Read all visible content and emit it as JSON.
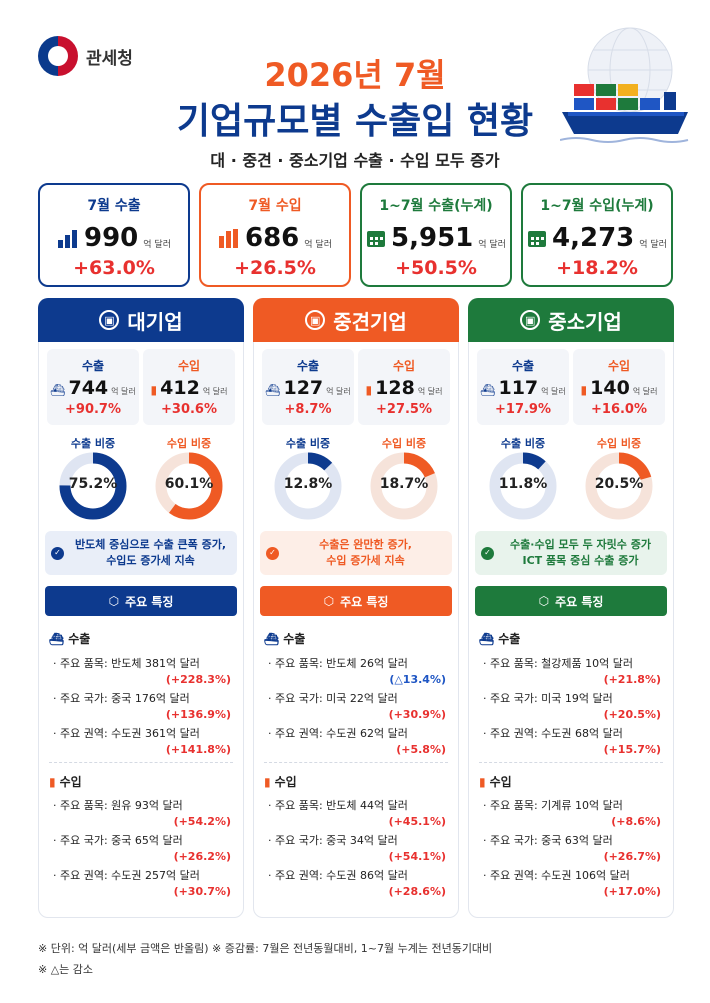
{
  "header": {
    "logo_text": "관세청",
    "title_line1": "2026년 7월",
    "title_line2": "기업규모별 수출입 현황",
    "subtitle": "대 · 중견 · 중소기업 수출 · 수입 모두 증가"
  },
  "summary": [
    {
      "label": "7월 수출",
      "value": "990",
      "unit": "억 달러",
      "change": "+63.0%",
      "icon": "bar-chart-icon",
      "color": "#0d3a8e"
    },
    {
      "label": "7월 수입",
      "value": "686",
      "unit": "억 달러",
      "change": "+26.5%",
      "icon": "bar-chart-icon",
      "color": "#ef5a24"
    },
    {
      "label": "1~7월 수출(누계)",
      "value": "5,951",
      "unit": "억 달러",
      "change": "+50.5%",
      "icon": "calendar-icon",
      "color": "#1e7a3c"
    },
    {
      "label": "1~7월 수입(누계)",
      "value": "4,273",
      "unit": "억 달러",
      "change": "+18.2%",
      "icon": "calendar-icon",
      "color": "#1e7a3c"
    }
  ],
  "columns": [
    {
      "name": "대기업",
      "color": "#0d3a8e",
      "export": {
        "label": "수출",
        "value": "744",
        "unit": "억 달러",
        "change": "+90.7%"
      },
      "import": {
        "label": "수입",
        "value": "412",
        "unit": "억 달러",
        "change": "+30.6%"
      },
      "export_share": {
        "label": "수출 비중",
        "value": 75.2,
        "text": "75.2%"
      },
      "import_share": {
        "label": "수입 비중",
        "value": 60.1,
        "text": "60.1%"
      },
      "note": [
        "반도체 중심으로 수출 큰폭 증가,",
        "수입도 증가세 지속"
      ],
      "features_label": "주요 특징",
      "export_section": "수출",
      "export_items": [
        {
          "text": "· 주요 품목: 반도체 381억 달러",
          "change": "(+228.3%)",
          "dir": "up"
        },
        {
          "text": "· 주요 국가: 중국 176억 달러",
          "change": "(+136.9%)",
          "dir": "up"
        },
        {
          "text": "· 주요 권역: 수도권 361억 달러",
          "change": "(+141.8%)",
          "dir": "up"
        }
      ],
      "import_section": "수입",
      "import_items": [
        {
          "text": "· 주요 품목: 원유 93억 달러",
          "change": "(+54.2%)",
          "dir": "up"
        },
        {
          "text": "· 주요 국가: 중국 65억 달러",
          "change": "(+26.2%)",
          "dir": "up"
        },
        {
          "text": "· 주요 권역: 수도권 257억 달러",
          "change": "(+30.7%)",
          "dir": "up"
        }
      ]
    },
    {
      "name": "중견기업",
      "color": "#ef5a24",
      "export": {
        "label": "수출",
        "value": "127",
        "unit": "억 달러",
        "change": "+8.7%"
      },
      "import": {
        "label": "수입",
        "value": "128",
        "unit": "억 달러",
        "change": "+27.5%"
      },
      "export_share": {
        "label": "수출 비중",
        "value": 12.8,
        "text": "12.8%"
      },
      "import_share": {
        "label": "수입 비중",
        "value": 18.7,
        "text": "18.7%"
      },
      "note": [
        "수출은 완만한 증가,",
        "수입 증가세 지속"
      ],
      "features_label": "주요 특징",
      "export_section": "수출",
      "export_items": [
        {
          "text": "· 주요 품목: 반도체 26억 달러",
          "change": "(△13.4%)",
          "dir": "down"
        },
        {
          "text": "· 주요 국가: 미국 22억 달러",
          "change": "(+30.9%)",
          "dir": "up"
        },
        {
          "text": "· 주요 권역: 수도권 62억 달러",
          "change": "(+5.8%)",
          "dir": "up"
        }
      ],
      "import_section": "수입",
      "import_items": [
        {
          "text": "· 주요 품목: 반도체 44억 달러",
          "change": "(+45.1%)",
          "dir": "up"
        },
        {
          "text": "· 주요 국가: 중국 34억 달러",
          "change": "(+54.1%)",
          "dir": "up"
        },
        {
          "text": "· 주요 권역: 수도권 86억 달러",
          "change": "(+28.6%)",
          "dir": "up"
        }
      ]
    },
    {
      "name": "중소기업",
      "color": "#1e7a3c",
      "export": {
        "label": "수출",
        "value": "117",
        "unit": "억 달러",
        "change": "+17.9%"
      },
      "import": {
        "label": "수입",
        "value": "140",
        "unit": "억 달러",
        "change": "+16.0%"
      },
      "export_share": {
        "label": "수출 비중",
        "value": 11.8,
        "text": "11.8%"
      },
      "import_share": {
        "label": "수입 비중",
        "value": 20.5,
        "text": "20.5%"
      },
      "note": [
        "수출·수입 모두 두 자릿수 증가",
        "ICT 품목 중심 수출 증가"
      ],
      "features_label": "주요 특징",
      "export_section": "수출",
      "export_items": [
        {
          "text": "· 주요 품목: 철강제품 10억 달러",
          "change": "(+21.8%)",
          "dir": "up"
        },
        {
          "text": "· 주요 국가: 미국 19억 달러",
          "change": "(+20.5%)",
          "dir": "up"
        },
        {
          "text": "· 주요 권역: 수도권 68억 달러",
          "change": "(+15.7%)",
          "dir": "up"
        }
      ],
      "import_section": "수입",
      "import_items": [
        {
          "text": "· 주요 품목: 기계류 10억 달러",
          "change": "(+8.6%)",
          "dir": "up"
        },
        {
          "text": "· 주요 국가: 중국 63억 달러",
          "change": "(+26.7%)",
          "dir": "up"
        },
        {
          "text": "· 주요 권역: 수도권 106억 달러",
          "change": "(+17.0%)",
          "dir": "up"
        }
      ]
    }
  ],
  "colors": {
    "export_blue": "#0d3a8e",
    "import_orange": "#ef5a24",
    "increase_red": "#e8312f",
    "decrease_blue": "#1f56c4"
  },
  "footer": {
    "line1": "※ 단위: 억 달러(세부 금액은 반올림)   ※ 증감률: 7월은 전년동월대비, 1~7월 누계는 전년동기대비",
    "line2": "※ △는 감소"
  }
}
